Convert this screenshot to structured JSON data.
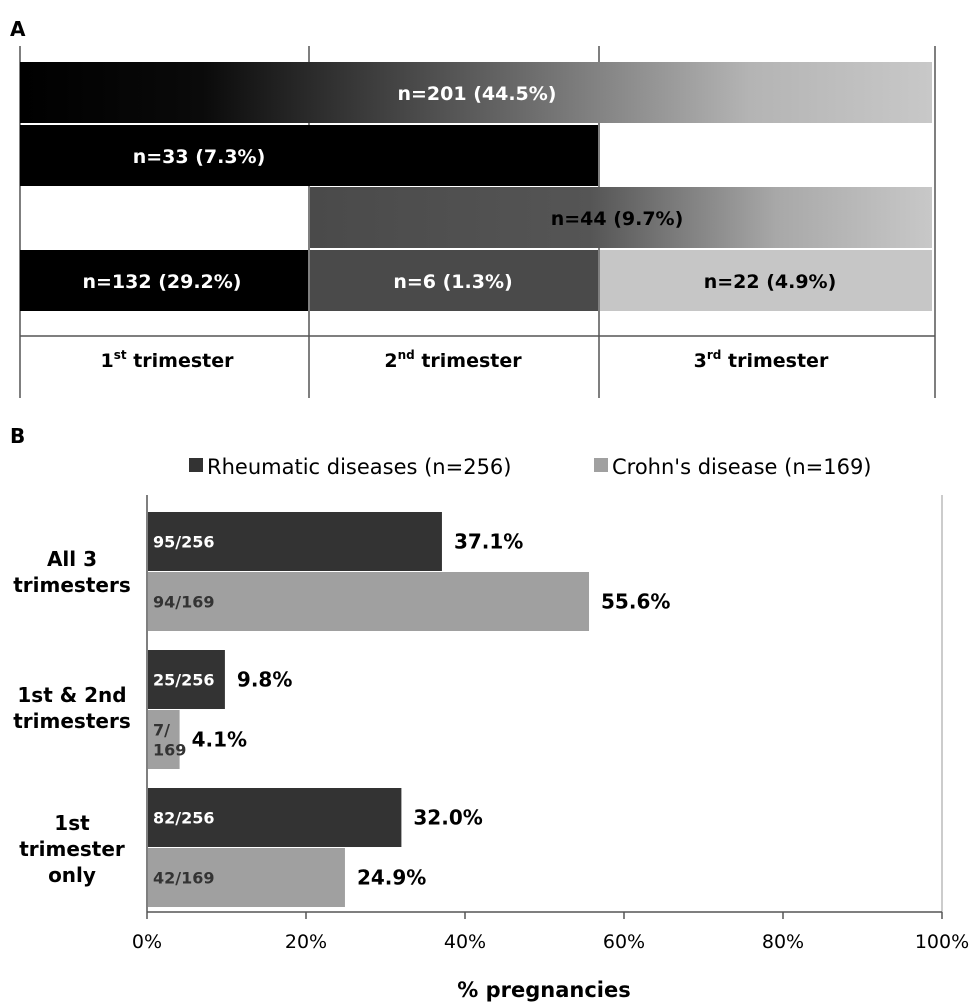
{
  "chart_data": [
    {
      "panel": "A",
      "type": "bar",
      "columns": [
        {
          "label": "1",
          "sup": "st",
          "rest": " trimester"
        },
        {
          "label": "2",
          "sup": "nd",
          "rest": " trimester"
        },
        {
          "label": "3",
          "sup": "rd",
          "rest": " trimester"
        }
      ],
      "bars": [
        {
          "start": 0,
          "end": 3,
          "fill": "gradient",
          "label": "n=201 (44.5%)"
        },
        {
          "start": 0,
          "end": 2,
          "fill": "#000000",
          "label": "n=33 (7.3%)"
        },
        {
          "start": 1,
          "end": 3,
          "fill": "gradient",
          "label": "n=44 (9.7%)"
        },
        {
          "start": 0,
          "end": 1,
          "fill": "#000000",
          "label": "n=132 (29.2%)"
        },
        {
          "start": 1,
          "end": 2,
          "fill": "#4a4a4a",
          "label": "n=6 (1.3%)"
        },
        {
          "start": 2,
          "end": 3,
          "fill": "#c6c6c6",
          "label": "n=22 (4.9%)"
        }
      ],
      "trimester_colors": [
        "#000000",
        "#4a4a4a",
        "#c6c6c6"
      ]
    },
    {
      "panel": "B",
      "type": "bar",
      "orientation": "horizontal",
      "categories": [
        [
          "All 3",
          "trimesters"
        ],
        [
          "1st & 2nd",
          "trimesters"
        ],
        [
          "1st",
          "trimester",
          "only"
        ]
      ],
      "series": [
        {
          "name": "Rheumatic diseases (n=256)",
          "color": "#333333",
          "values": [
            37.1,
            9.8,
            32.0
          ],
          "value_labels": [
            "37.1%",
            "9.8%",
            "32.0%"
          ],
          "inner_labels": [
            [
              "95/256"
            ],
            [
              "25/256"
            ],
            [
              "82/256"
            ]
          ]
        },
        {
          "name": "Crohn's disease (n=169)",
          "color": "#a0a0a0",
          "values": [
            55.6,
            4.1,
            24.9
          ],
          "value_labels": [
            "55.6%",
            "4.1%",
            "24.9%"
          ],
          "inner_labels": [
            [
              "94/169"
            ],
            [
              "7/",
              "169"
            ],
            [
              "42/169"
            ]
          ]
        }
      ],
      "xlim": [
        0,
        100
      ],
      "xticks": [
        "0%",
        "20%",
        "40%",
        "60%",
        "80%",
        "100%"
      ],
      "xlabel": "% pregnancies",
      "legend_position": "top"
    }
  ]
}
